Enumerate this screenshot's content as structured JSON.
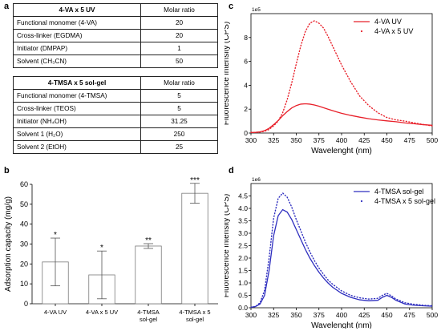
{
  "panels": {
    "a": "a",
    "b": "b",
    "c": "c",
    "d": "d"
  },
  "table1": {
    "header": [
      "4-VA x 5 UV",
      "Molar ratio"
    ],
    "rows": [
      [
        "Functional monomer (4-VA)",
        "20"
      ],
      [
        "Cross-linker (EGDMA)",
        "20"
      ],
      [
        "Initiator (DMPAP)",
        "1"
      ],
      [
        "Solvent (CH₃CN)",
        "50"
      ]
    ]
  },
  "table2": {
    "header": [
      "4-TMSA x 5 sol-gel",
      "Molar ratio"
    ],
    "rows": [
      [
        "Functional monomer (4-TMSA)",
        "5"
      ],
      [
        "Cross-linker (TEOS)",
        "5"
      ],
      [
        "Initiator (NH₄OH)",
        "31.25"
      ],
      [
        "Solvent 1 (H₂O)",
        "250"
      ],
      [
        "Solvent 2 (EtOH)",
        "25"
      ]
    ]
  },
  "chart_data": [
    {
      "panel": "b",
      "type": "bar",
      "categories": [
        "4-VA UV",
        "4-VA x 5 UV",
        "4-TMSA sol-gel",
        "4-TMSA x 5 sol-gel"
      ],
      "category_lines": [
        [
          "4-VA UV"
        ],
        [
          "4-VA x 5 UV"
        ],
        [
          "4-TMSA",
          "sol-gel"
        ],
        [
          "4-TMSA x 5",
          "sol-gel"
        ]
      ],
      "values": [
        21,
        14.5,
        29,
        55.5
      ],
      "errors": [
        12,
        12,
        1.2,
        5
      ],
      "significance": [
        "*",
        "*",
        "**",
        "***"
      ],
      "ylabel": "Adsorption capacity (mg/g)",
      "xlabel": "",
      "ylim": [
        0,
        60
      ],
      "yticks": [
        0,
        10,
        20,
        30,
        40,
        50,
        60
      ],
      "colors": {
        "bar_fill": "#ffffff",
        "bar_edge": "#7a7a7a"
      }
    },
    {
      "panel": "c",
      "type": "line",
      "xlabel": "Wavelenght (nm)",
      "ylabel": "Fluorescence intensity (CPS)",
      "scale_label": "1e5",
      "xlim": [
        300,
        500
      ],
      "ylim": [
        0,
        10
      ],
      "xticks": [
        300,
        325,
        350,
        375,
        400,
        425,
        450,
        475,
        500
      ],
      "yticks": [
        0,
        2,
        4,
        6,
        8
      ],
      "legend_position": "top-right",
      "series": [
        {
          "name": "4-VA UV",
          "style": "solid",
          "color": "#e8202a",
          "x": [
            300,
            305,
            310,
            315,
            320,
            325,
            330,
            335,
            340,
            345,
            350,
            355,
            360,
            365,
            370,
            375,
            380,
            385,
            390,
            395,
            400,
            410,
            420,
            430,
            440,
            450,
            460,
            470,
            480,
            490,
            500
          ],
          "y": [
            0.05,
            0.06,
            0.1,
            0.2,
            0.4,
            0.7,
            1.05,
            1.45,
            1.8,
            2.1,
            2.3,
            2.42,
            2.45,
            2.42,
            2.35,
            2.25,
            2.12,
            2.0,
            1.88,
            1.76,
            1.65,
            1.48,
            1.33,
            1.2,
            1.1,
            1.02,
            0.95,
            0.85,
            0.78,
            0.7,
            0.65
          ]
        },
        {
          "name": "4-VA x 5 UV",
          "style": "dotted",
          "color": "#e8202a",
          "x": [
            300,
            305,
            310,
            315,
            320,
            325,
            330,
            335,
            340,
            345,
            350,
            355,
            360,
            365,
            370,
            375,
            380,
            385,
            390,
            395,
            400,
            410,
            420,
            430,
            440,
            450,
            460,
            470,
            480,
            490,
            500
          ],
          "y": [
            0.05,
            0.05,
            0.08,
            0.15,
            0.3,
            0.6,
            1.0,
            1.7,
            2.8,
            4.2,
            5.8,
            7.3,
            8.5,
            9.2,
            9.4,
            9.2,
            8.8,
            8.1,
            7.3,
            6.5,
            5.7,
            4.3,
            3.1,
            2.3,
            1.7,
            1.3,
            1.1,
            1.0,
            0.85,
            0.72,
            0.6
          ]
        }
      ]
    },
    {
      "panel": "d",
      "type": "line",
      "xlabel": "Wavelenght (nm)",
      "ylabel": "Fluorescence intensity (CPS)",
      "scale_label": "1e6",
      "xlim": [
        300,
        500
      ],
      "ylim": [
        0,
        5
      ],
      "xticks": [
        300,
        325,
        350,
        375,
        400,
        425,
        450,
        475,
        500
      ],
      "yticks": [
        0.0,
        0.5,
        1.0,
        1.5,
        2.0,
        2.5,
        3.0,
        3.5,
        4.0,
        4.5
      ],
      "legend_position": "top-right",
      "series": [
        {
          "name": "4-TMSA sol-gel",
          "style": "solid",
          "color": "#2e2ebf",
          "x": [
            300,
            305,
            310,
            315,
            320,
            325,
            330,
            335,
            340,
            345,
            350,
            355,
            360,
            365,
            370,
            375,
            380,
            385,
            390,
            400,
            410,
            420,
            430,
            440,
            445,
            450,
            455,
            460,
            470,
            480,
            490,
            500
          ],
          "y": [
            0.02,
            0.05,
            0.15,
            0.5,
            1.5,
            2.9,
            3.7,
            3.95,
            3.85,
            3.55,
            3.15,
            2.75,
            2.35,
            2.0,
            1.7,
            1.43,
            1.2,
            1.0,
            0.83,
            0.58,
            0.42,
            0.32,
            0.28,
            0.3,
            0.42,
            0.5,
            0.42,
            0.3,
            0.15,
            0.1,
            0.08,
            0.06
          ]
        },
        {
          "name": "4-TMSA x 5 sol-gel",
          "style": "dotted",
          "color": "#2e2ebf",
          "x": [
            300,
            305,
            310,
            315,
            320,
            325,
            330,
            335,
            340,
            345,
            350,
            355,
            360,
            365,
            370,
            375,
            380,
            385,
            390,
            400,
            410,
            420,
            430,
            440,
            445,
            450,
            455,
            460,
            470,
            480,
            490,
            500
          ],
          "y": [
            0.02,
            0.05,
            0.2,
            0.7,
            2.0,
            3.6,
            4.4,
            4.62,
            4.45,
            4.05,
            3.55,
            3.1,
            2.65,
            2.25,
            1.9,
            1.6,
            1.35,
            1.12,
            0.95,
            0.68,
            0.5,
            0.4,
            0.35,
            0.38,
            0.5,
            0.58,
            0.48,
            0.35,
            0.2,
            0.14,
            0.1,
            0.08
          ]
        }
      ]
    }
  ]
}
